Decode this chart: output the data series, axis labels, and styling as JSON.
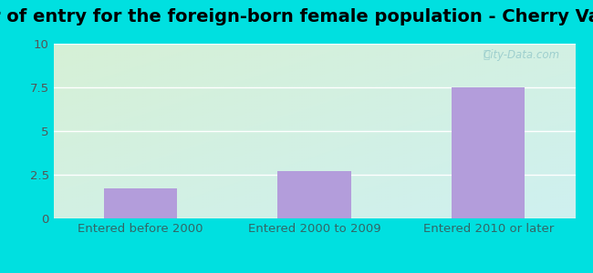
{
  "title": "Year of entry for the foreign-born female population - Cherry Valley",
  "categories": [
    "Entered before 2000",
    "Entered 2000 to 2009",
    "Entered 2010 or later"
  ],
  "values": [
    1.7,
    2.7,
    7.5
  ],
  "bar_color": "#b39ddb",
  "ylim": [
    0,
    10
  ],
  "yticks": [
    0,
    2.5,
    5,
    7.5,
    10
  ],
  "ytick_labels": [
    "0",
    "2.5",
    "5",
    "7.5",
    "10"
  ],
  "bg_color": "#00e0e0",
  "plot_bg_topleft_color": "#d6f0d6",
  "plot_bg_bottomright_color": "#cff0f0",
  "title_fontsize": 14,
  "tick_fontsize": 9.5,
  "xtick_color": "#336666",
  "ytick_color": "#555555",
  "watermark": "City-Data.com",
  "grid_color": "#ffffff"
}
